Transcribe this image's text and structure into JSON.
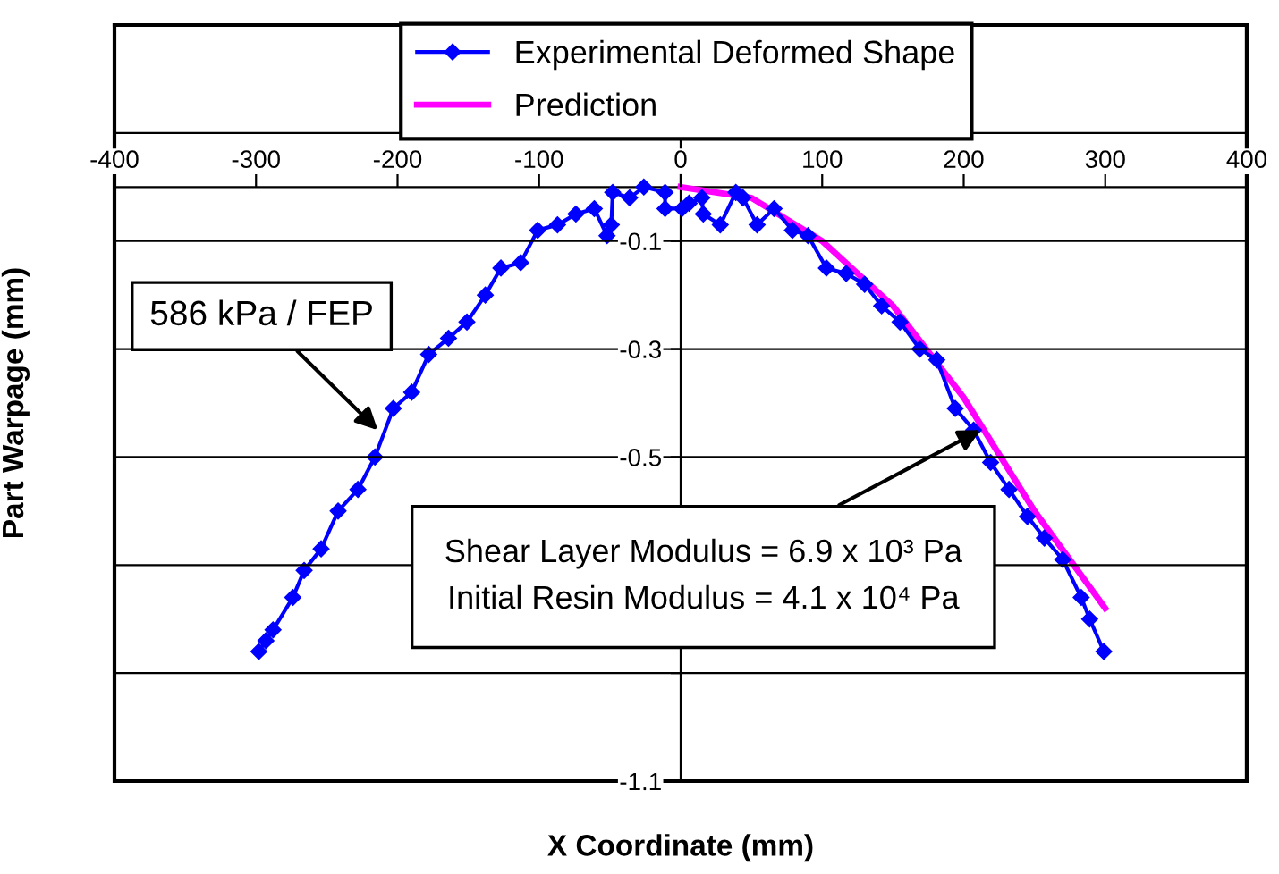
{
  "chart_data": {
    "type": "line",
    "xlabel": "X Coordinate (mm)",
    "ylabel": "Part Warpage (mm)",
    "xlim": [
      -400,
      400
    ],
    "xticks": [
      -400,
      -300,
      -200,
      -100,
      0,
      100,
      200,
      300,
      400
    ],
    "ylim": [
      -1.1,
      0.3
    ],
    "yticks": [
      -1.1,
      {
        "value": -0.9,
        "label": null
      },
      {
        "value": -0.7,
        "label": null
      },
      -0.5,
      -0.3,
      -0.1,
      {
        "value": 0.1,
        "label": null
      },
      {
        "value": 0.3,
        "label": null
      }
    ],
    "grid": "y",
    "legend": "top",
    "series": [
      {
        "name": "Experimental Deformed Shape",
        "color": "#0000ff",
        "marker": "diamond",
        "x": [
          -298,
          -293,
          -288,
          -274,
          -266,
          -254,
          -242,
          -228,
          -216,
          -203,
          -190,
          -178,
          -164,
          -151,
          -138,
          -127,
          -113,
          -101,
          -87,
          -74,
          -61,
          -52,
          -49,
          -48,
          -36,
          -26,
          -11,
          -11,
          1,
          6,
          15,
          16,
          28,
          39,
          44,
          54,
          66,
          79,
          90,
          103,
          117,
          130,
          142,
          155,
          169,
          181,
          194,
          207,
          219,
          232,
          245,
          257,
          270,
          283,
          289,
          299
        ],
        "values": [
          -0.86,
          -0.84,
          -0.82,
          -0.76,
          -0.71,
          -0.67,
          -0.6,
          -0.56,
          -0.5,
          -0.41,
          -0.38,
          -0.31,
          -0.28,
          -0.25,
          -0.2,
          -0.15,
          -0.14,
          -0.08,
          -0.07,
          -0.05,
          -0.04,
          -0.09,
          -0.07,
          -0.01,
          -0.02,
          0.0,
          -0.01,
          -0.04,
          -0.04,
          -0.03,
          -0.02,
          -0.05,
          -0.07,
          -0.01,
          -0.02,
          -0.07,
          -0.04,
          -0.08,
          -0.09,
          -0.15,
          -0.16,
          -0.18,
          -0.22,
          -0.25,
          -0.3,
          -0.32,
          -0.41,
          -0.45,
          -0.51,
          -0.56,
          -0.61,
          -0.65,
          -0.69,
          -0.76,
          -0.8,
          -0.86
        ]
      },
      {
        "name": "Prediction",
        "color": "#ff00ff",
        "marker": "none",
        "x": [
          0,
          50,
          100,
          150,
          200,
          250,
          300
        ],
        "values": [
          0.0,
          -0.02,
          -0.1,
          -0.22,
          -0.39,
          -0.6,
          -0.78
        ]
      }
    ],
    "annotations": [
      {
        "text": "586 kPa / FEP",
        "x": -214,
        "y": -0.45
      },
      {
        "text": "Shear Layer Modulus = 6.9 x 10³ Pa\nInitial Resin Modulus = 4.1 x 10⁴ Pa",
        "x": 212,
        "y": -0.45
      }
    ]
  }
}
